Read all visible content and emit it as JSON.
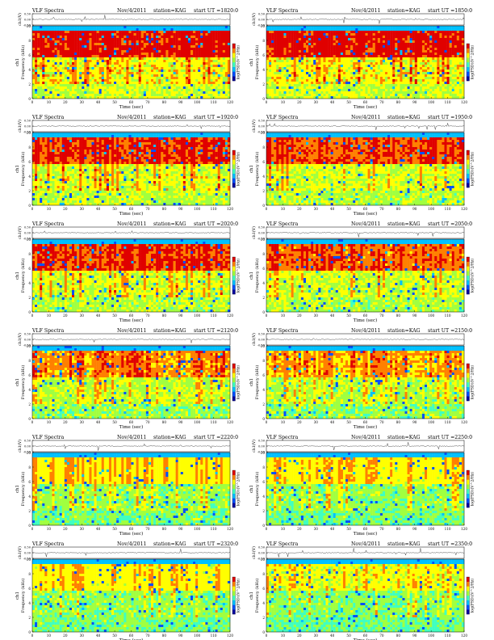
{
  "chart_data": [
    {
      "type": "heatmap",
      "title": "VLF Spectra",
      "date": "Nov/4/2011",
      "station": "station=KAG",
      "start": "start UT =1820:0",
      "channel_label": "ch1(V)",
      "ylabel": "Frequency (kHz)",
      "ylabel_prefix": "ch1",
      "xlabel": "Time (sec)",
      "colorbar_label": "log(PSD)(V^2/Hz)",
      "xlim": [
        0,
        120
      ],
      "ylim": [
        0,
        10
      ],
      "waveform_ylim": [
        -0.5,
        0.5
      ],
      "x_ticks": [
        0,
        10,
        20,
        30,
        40,
        50,
        60,
        70,
        80,
        90,
        100,
        110,
        120
      ],
      "y_ticks": [
        0,
        2,
        4,
        6,
        8,
        10
      ],
      "waveform_ticks": [
        "0.50",
        "0.00",
        "-0.50"
      ],
      "intensity": 0.9
    },
    {
      "type": "heatmap",
      "title": "VLF Spectra",
      "date": "Nov/4/2011",
      "station": "station=KAG",
      "start": "start UT =1850:0",
      "channel_label": "ch1(V)",
      "ylabel": "Frequency (kHz)",
      "ylabel_prefix": "ch1",
      "xlabel": "Time (sec)",
      "colorbar_label": "log(PSD)(V^2/Hz)",
      "xlim": [
        0,
        120
      ],
      "ylim": [
        0,
        10
      ],
      "waveform_ylim": [
        -0.5,
        0.5
      ],
      "x_ticks": [
        0,
        10,
        20,
        30,
        40,
        50,
        60,
        70,
        80,
        90,
        100,
        110,
        120
      ],
      "y_ticks": [
        0,
        2,
        4,
        6,
        8,
        10
      ],
      "waveform_ticks": [
        "0.50",
        "0.00",
        "-0.50"
      ],
      "intensity": 0.9
    },
    {
      "type": "heatmap",
      "title": "VLF Spectra",
      "date": "Nov/4/2011",
      "station": "station=KAG",
      "start": "start UT =1920:0",
      "channel_label": "ch1(V)",
      "ylabel": "Frequency (kHz)",
      "ylabel_prefix": "ch1",
      "xlabel": "Time (sec)",
      "colorbar_label": "log(PSD)(V^2/Hz)",
      "xlim": [
        0,
        120
      ],
      "ylim": [
        0,
        10
      ],
      "waveform_ylim": [
        -0.5,
        0.5
      ],
      "x_ticks": [
        0,
        10,
        20,
        30,
        40,
        50,
        60,
        70,
        80,
        90,
        100,
        110,
        120
      ],
      "y_ticks": [
        0,
        2,
        4,
        6,
        8,
        10
      ],
      "waveform_ticks": [
        "0.50",
        "0.00",
        "-0.50"
      ],
      "intensity": 0.8
    },
    {
      "type": "heatmap",
      "title": "VLF Spectra",
      "date": "Nov/4/2011",
      "station": "station=KAG",
      "start": "start UT =1950:0",
      "channel_label": "ch1(V)",
      "ylabel": "Frequency (kHz)",
      "ylabel_prefix": "ch1",
      "xlabel": "Time (sec)",
      "colorbar_label": "log(PSD)(V^2/Hz)",
      "xlim": [
        0,
        120
      ],
      "ylim": [
        0,
        10
      ],
      "waveform_ylim": [
        -0.5,
        0.5
      ],
      "x_ticks": [
        0,
        10,
        20,
        30,
        40,
        50,
        60,
        70,
        80,
        90,
        100,
        110,
        120
      ],
      "y_ticks": [
        0,
        2,
        4,
        6,
        8,
        10
      ],
      "waveform_ticks": [
        "0.50",
        "0.00",
        "-0.50"
      ],
      "intensity": 0.75
    },
    {
      "type": "heatmap",
      "title": "VLF Spectra",
      "date": "Nov/4/2011",
      "station": "station=KAG",
      "start": "start UT =2020:0",
      "channel_label": "ch1(V)",
      "ylabel": "Frequency (kHz)",
      "ylabel_prefix": "ch1",
      "xlabel": "Time (sec)",
      "colorbar_label": "log(PSD)(V^2/Hz)",
      "xlim": [
        0,
        120
      ],
      "ylim": [
        0,
        10
      ],
      "waveform_ylim": [
        -0.5,
        0.5
      ],
      "x_ticks": [
        0,
        10,
        20,
        30,
        40,
        50,
        60,
        70,
        80,
        90,
        100,
        110,
        120
      ],
      "y_ticks": [
        0,
        2,
        4,
        6,
        8,
        10
      ],
      "waveform_ticks": [
        "0.50",
        "0.00",
        "-0.50"
      ],
      "intensity": 0.75
    },
    {
      "type": "heatmap",
      "title": "VLF Spectra",
      "date": "Nov/4/2011",
      "station": "station=KAG",
      "start": "start UT =2050:0",
      "channel_label": "ch1(V)",
      "ylabel": "Frequency (kHz)",
      "ylabel_prefix": "ch1",
      "xlabel": "Time (sec)",
      "colorbar_label": "log(PSD)(V^2/Hz)",
      "xlim": [
        0,
        120
      ],
      "ylim": [
        0,
        10
      ],
      "waveform_ylim": [
        -0.5,
        0.5
      ],
      "x_ticks": [
        0,
        10,
        20,
        30,
        40,
        50,
        60,
        70,
        80,
        90,
        100,
        110,
        120
      ],
      "y_ticks": [
        0,
        2,
        4,
        6,
        8,
        10
      ],
      "waveform_ticks": [
        "0.50",
        "0.00",
        "-0.50"
      ],
      "intensity": 0.7
    },
    {
      "type": "heatmap",
      "title": "VLF Spectra",
      "date": "Nov/4/2011",
      "station": "station=KAG",
      "start": "start UT =2120:0",
      "channel_label": "ch1(V)",
      "ylabel": "Frequency (kHz)",
      "ylabel_prefix": "ch1",
      "xlabel": "Time (sec)",
      "colorbar_label": "log(PSD)(V^2/Hz)",
      "xlim": [
        0,
        120
      ],
      "ylim": [
        0,
        10
      ],
      "waveform_ylim": [
        -0.5,
        0.5
      ],
      "x_ticks": [
        0,
        10,
        20,
        30,
        40,
        50,
        60,
        70,
        80,
        90,
        100,
        110,
        120
      ],
      "y_ticks": [
        0,
        2,
        4,
        6,
        8,
        10
      ],
      "waveform_ticks": [
        "0.50",
        "0.00",
        "-0.50"
      ],
      "intensity": 0.6
    },
    {
      "type": "heatmap",
      "title": "VLF Spectra",
      "date": "Nov/4/2011",
      "station": "station=KAG",
      "start": "start UT =2150:0",
      "channel_label": "ch1(V)",
      "ylabel": "Frequency (kHz)",
      "ylabel_prefix": "ch1",
      "xlabel": "Time (sec)",
      "colorbar_label": "log(PSD)(V^2/Hz)",
      "xlim": [
        0,
        120
      ],
      "ylim": [
        0,
        10
      ],
      "waveform_ylim": [
        -0.5,
        0.5
      ],
      "x_ticks": [
        0,
        10,
        20,
        30,
        40,
        50,
        60,
        70,
        80,
        90,
        100,
        110,
        120
      ],
      "y_ticks": [
        0,
        2,
        4,
        6,
        8,
        10
      ],
      "waveform_ticks": [
        "0.50",
        "0.00",
        "-0.50"
      ],
      "intensity": 0.55
    },
    {
      "type": "heatmap",
      "title": "VLF Spectra",
      "date": "Nov/4/2011",
      "station": "station=KAG",
      "start": "start UT =2220:0",
      "channel_label": "ch1(V)",
      "ylabel": "Frequency (kHz)",
      "ylabel_prefix": "ch1",
      "xlabel": "Time (sec)",
      "colorbar_label": "log(PSD)(V^2/Hz)",
      "xlim": [
        0,
        120
      ],
      "ylim": [
        0,
        10
      ],
      "waveform_ylim": [
        -0.5,
        0.5
      ],
      "x_ticks": [
        0,
        10,
        20,
        30,
        40,
        50,
        60,
        70,
        80,
        90,
        100,
        110,
        120
      ],
      "y_ticks": [
        0,
        2,
        4,
        6,
        8,
        10
      ],
      "waveform_ticks": [
        "0.50",
        "0.00",
        "-0.50"
      ],
      "intensity": 0.45
    },
    {
      "type": "heatmap",
      "title": "VLF Spectra",
      "date": "Nov/4/2011",
      "station": "station=KAG",
      "start": "start UT =2250:0",
      "channel_label": "ch1(V)",
      "ylabel": "Frequency (kHz)",
      "ylabel_prefix": "ch1",
      "xlabel": "Time (sec)",
      "colorbar_label": "log(PSD)(V^2/Hz)",
      "xlim": [
        0,
        120
      ],
      "ylim": [
        0,
        10
      ],
      "waveform_ylim": [
        -0.5,
        0.5
      ],
      "x_ticks": [
        0,
        10,
        20,
        30,
        40,
        50,
        60,
        70,
        80,
        90,
        100,
        110,
        120
      ],
      "y_ticks": [
        0,
        2,
        4,
        6,
        8,
        10
      ],
      "waveform_ticks": [
        "0.50",
        "0.00",
        "-0.50"
      ],
      "intensity": 0.4
    },
    {
      "type": "heatmap",
      "title": "VLF Spectra",
      "date": "Nov/4/2011",
      "station": "station=KAG",
      "start": "start UT =2320:0",
      "channel_label": "ch1(V)",
      "ylabel": "Frequency (kHz)",
      "ylabel_prefix": "ch1",
      "xlabel": "Time (sec)",
      "colorbar_label": "log(PSD)(V^2/Hz)",
      "xlim": [
        0,
        120
      ],
      "ylim": [
        0,
        10
      ],
      "waveform_ylim": [
        -0.5,
        0.5
      ],
      "x_ticks": [
        0,
        10,
        20,
        30,
        40,
        50,
        60,
        70,
        80,
        90,
        100,
        110,
        120
      ],
      "y_ticks": [
        0,
        2,
        4,
        6,
        8,
        10
      ],
      "waveform_ticks": [
        "0.50",
        "0.00",
        "-0.50"
      ],
      "intensity": 0.4
    },
    {
      "type": "heatmap",
      "title": "VLF Spectra",
      "date": "Nov/4/2011",
      "station": "station=KAG",
      "start": "start UT =2350:0",
      "channel_label": "ch1(V)",
      "ylabel": "Frequency (kHz)",
      "ylabel_prefix": "ch1",
      "xlabel": "Time (sec)",
      "colorbar_label": "log(PSD)(V^2/Hz)",
      "xlim": [
        0,
        120
      ],
      "ylim": [
        0,
        10
      ],
      "waveform_ylim": [
        -0.5,
        0.5
      ],
      "x_ticks": [
        0,
        10,
        20,
        30,
        40,
        50,
        60,
        70,
        80,
        90,
        100,
        110,
        120
      ],
      "y_ticks": [
        0,
        2,
        4,
        6,
        8,
        10
      ],
      "waveform_ticks": [
        "0.50",
        "0.00",
        "-0.50"
      ],
      "intensity": 0.35
    }
  ],
  "colormap": [
    "#0000a0",
    "#0050ff",
    "#00c0ff",
    "#40ffc0",
    "#a0ff40",
    "#ffff00",
    "#ff8000",
    "#e00000"
  ]
}
